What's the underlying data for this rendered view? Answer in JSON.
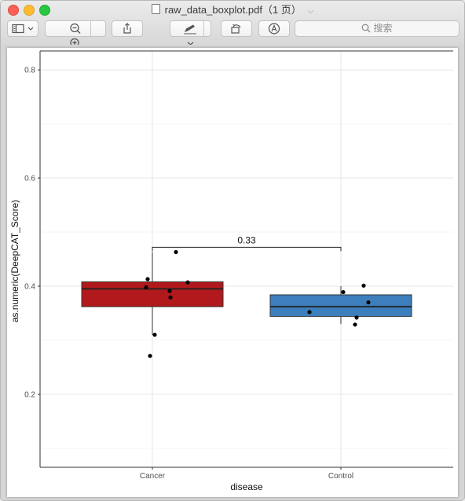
{
  "window": {
    "title": "raw_data_boxplot.pdf（1 页）"
  },
  "toolbar": {
    "sidebar_icon": "sidebar-icon",
    "zoom_out_icon": "zoom-out-icon",
    "zoom_in_icon": "zoom-in-icon",
    "share_icon": "share-icon",
    "markup_icon": "pen-icon",
    "rotate_icon": "rotate-icon",
    "annotate_icon": "markup-circle-icon",
    "search_placeholder": "搜索"
  },
  "chart_data": {
    "type": "boxplot",
    "xlabel": "disease",
    "ylabel": "as.numeric(DeepCAT_Score)",
    "ylim": [
      0.065,
      0.835
    ],
    "yticks": [
      0.2,
      0.4,
      0.6,
      0.8
    ],
    "ytick_labels": [
      "0.2",
      "0.4",
      "0.6",
      "0.8"
    ],
    "categories": [
      "Cancer",
      "Control"
    ],
    "groups": [
      {
        "name": "Cancer",
        "color": "#b2191c",
        "q1": 0.362,
        "median": 0.395,
        "q3": 0.408,
        "whisker_low": 0.31,
        "whisker_high": 0.463,
        "points": [
          0.413,
          0.398,
          0.391,
          0.407,
          0.379,
          0.463,
          0.31,
          0.271
        ]
      },
      {
        "name": "Control",
        "color": "#3d7ebc",
        "q1": 0.344,
        "median": 0.362,
        "q3": 0.384,
        "whisker_low": 0.33,
        "whisker_high": 0.4,
        "points": [
          0.352,
          0.389,
          0.401,
          0.37,
          0.342,
          0.329
        ]
      }
    ],
    "comparison": {
      "label": "0.33",
      "y": 0.472
    },
    "grid": true,
    "legend": "none"
  }
}
